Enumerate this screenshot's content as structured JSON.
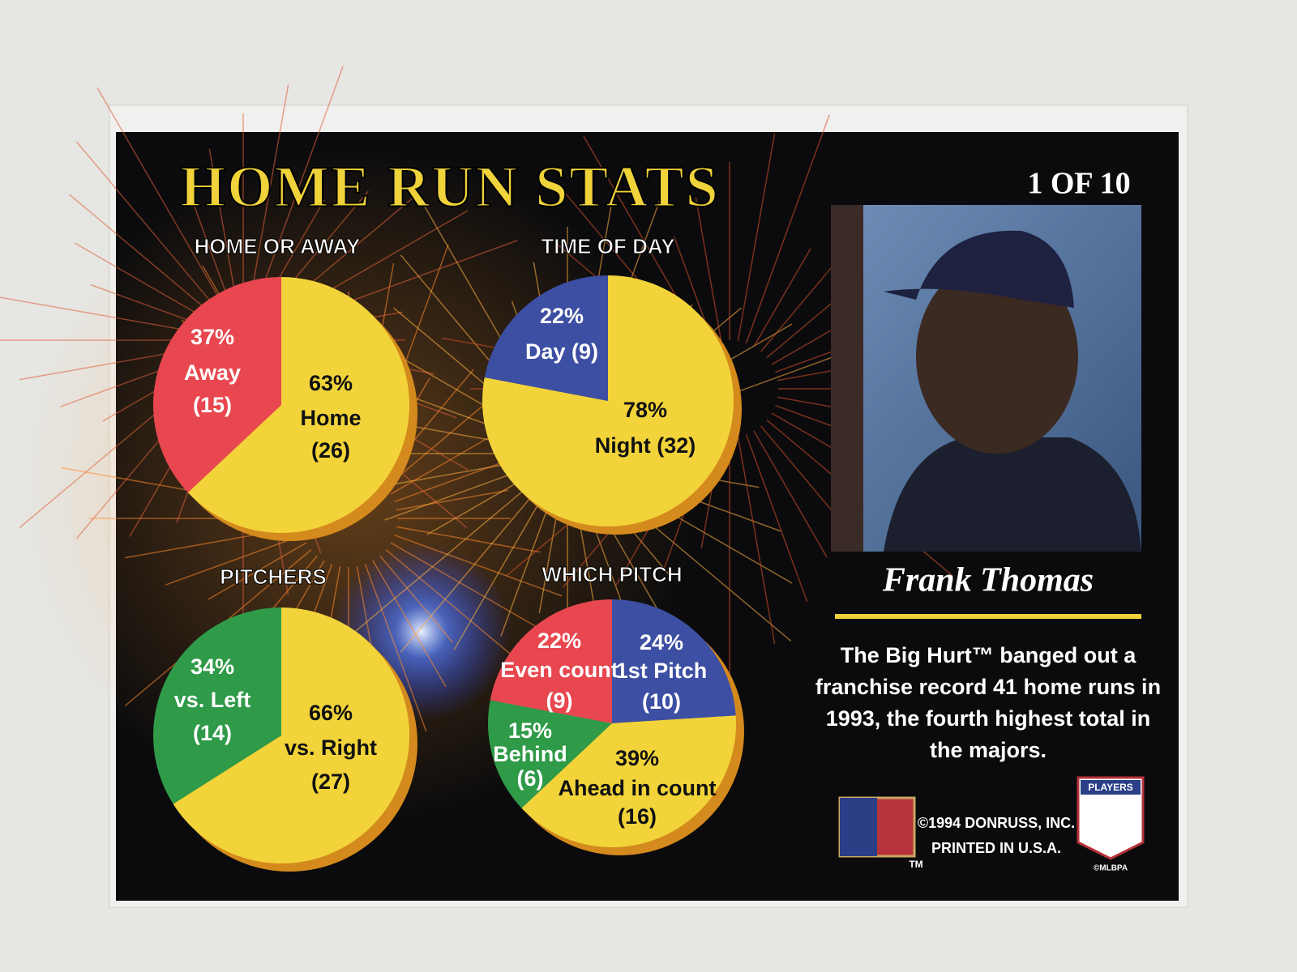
{
  "header": {
    "title": "HOME RUN STATS",
    "card_number": "1 OF 10"
  },
  "chart_data": [
    {
      "type": "pie",
      "title": "HOME OR AWAY",
      "categories": [
        "Home",
        "Away"
      ],
      "values": [
        63,
        37
      ],
      "value_labels": [
        "63%",
        "37%"
      ],
      "counts": [
        26,
        15
      ],
      "count_labels": [
        "(26)",
        "(15)"
      ],
      "colors": [
        "#f2d43a",
        "#e8474f"
      ]
    },
    {
      "type": "pie",
      "title": "TIME OF DAY",
      "categories": [
        "Night",
        "Day"
      ],
      "values": [
        78,
        22
      ],
      "value_labels": [
        "78%",
        "22%"
      ],
      "counts": [
        32,
        9
      ],
      "count_labels": [
        "(32)",
        "(9)"
      ],
      "colors": [
        "#f2d43a",
        "#3d4fa3"
      ]
    },
    {
      "type": "pie",
      "title": "PITCHERS",
      "categories": [
        "vs. Right",
        "vs. Left"
      ],
      "values": [
        66,
        34
      ],
      "value_labels": [
        "66%",
        "34%"
      ],
      "counts": [
        27,
        14
      ],
      "count_labels": [
        "(27)",
        "(14)"
      ],
      "colors": [
        "#f2d43a",
        "#2f9a48"
      ]
    },
    {
      "type": "pie",
      "title": "WHICH PITCH",
      "categories": [
        "1st Pitch",
        "Ahead in count",
        "Behind",
        "Even count"
      ],
      "values": [
        24,
        39,
        15,
        22
      ],
      "value_labels": [
        "24%",
        "39%",
        "15%",
        "22%"
      ],
      "counts": [
        10,
        16,
        6,
        9
      ],
      "count_labels": [
        "(10)",
        "(16)",
        "(6)",
        "(9)"
      ],
      "colors": [
        "#3d4fa3",
        "#f2d43a",
        "#2f9a48",
        "#e8474f"
      ]
    }
  ],
  "player": {
    "name": "Frank Thomas",
    "description": [
      "The Big Hurt™ banged out a",
      "franchise record 41 home runs in",
      "1993, the fourth highest total in",
      "the majors."
    ]
  },
  "footer": {
    "copyright": "©1994 DONRUSS, INC.",
    "printed": "PRINTED IN U.S.A.",
    "tm": "TM",
    "players_logo": "PLAYERS",
    "mlbpa": "©MLBPA"
  }
}
